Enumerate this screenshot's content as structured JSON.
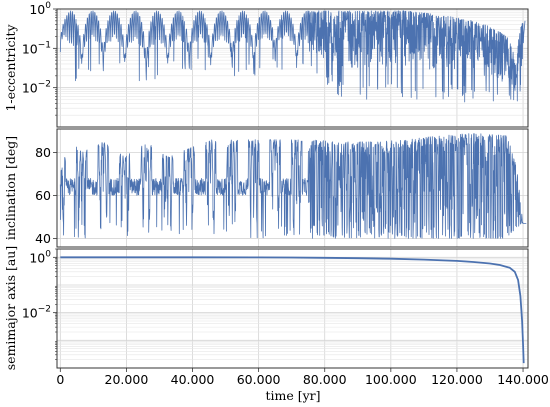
{
  "figure": {
    "xlabel": "time [yr]",
    "x_tick_labels": [
      "0",
      "20.000",
      "40.000",
      "60.000",
      "80.000",
      "100.000",
      "120.000",
      "140.000"
    ],
    "series_color": "#4c72b0",
    "grid_color": "#d4d4d4",
    "frame_color": "#333333"
  },
  "chart_data": [
    {
      "type": "line",
      "title": "",
      "xlabel": "",
      "ylabel": "1-eccentricity",
      "yscale": "log",
      "xlim": [
        -1000,
        141500
      ],
      "ylim": [
        0.001,
        1
      ],
      "y_tick_labels": [
        "10^0",
        "10^-1",
        "10^-2"
      ],
      "grid": true,
      "description_of_signal": "rapid Kozai-Lidov oscillations between ~0.9 and deep minima (~0.003-0.03); oscillation period ~6500 yr until ~75000 yr, then chaotic dense oscillations with minima reaching ~0.003-0.005 until ~140000 yr when it rises back to ~0.5",
      "series": [
        {
          "values_x": [
            0,
            3000,
            6500,
            13000,
            19500,
            26000,
            32500,
            39000,
            45500,
            52000,
            58500,
            65000,
            75000,
            85000,
            95000,
            105000,
            115000,
            125000,
            135000,
            138000,
            140000
          ],
          "values_y_max": [
            0.85,
            0.9,
            0.9,
            0.9,
            0.9,
            0.9,
            0.9,
            0.9,
            0.9,
            0.9,
            0.9,
            0.9,
            0.9,
            0.9,
            0.9,
            0.9,
            0.7,
            0.5,
            0.2,
            0.02,
            0.5
          ],
          "values_y_min": [
            0.08,
            0.003,
            0.02,
            0.02,
            0.02,
            0.01,
            0.02,
            0.02,
            0.02,
            0.02,
            0.02,
            0.03,
            0.02,
            0.005,
            0.005,
            0.005,
            0.005,
            0.004,
            0.003,
            0.003,
            0.01
          ]
        }
      ]
    },
    {
      "type": "line",
      "title": "",
      "xlabel": "",
      "ylabel": "inclination [deg]",
      "xlim": [
        -1000,
        141500
      ],
      "ylim": [
        36,
        91
      ],
      "y_tick_labels": [
        "40",
        "60",
        "80"
      ],
      "grid": true,
      "description_of_signal": "inclination oscillates between ~40 and ~88 deg in Kozai-Lidov cycles (period ~6500 yr), with a plateau band near 60-68 deg between cycles; after ~75000 yr cycles become chaotic, upper envelope near 85-90 deg, ending near 47 deg at ~140000 yr",
      "series": [
        {
          "values_x": [
            0,
            3000,
            6500,
            13000,
            19500,
            26000,
            32500,
            39000,
            45500,
            52000,
            58500,
            65000,
            75000,
            85000,
            95000,
            105000,
            115000,
            125000,
            135000,
            138000,
            140000
          ],
          "values_y_max": [
            70,
            88,
            80,
            85,
            78,
            85,
            78,
            82,
            86,
            86,
            86,
            86,
            86,
            85,
            85,
            86,
            88,
            89,
            88,
            75,
            47
          ],
          "values_y_min": [
            42,
            40,
            40,
            40,
            40,
            40,
            40,
            40,
            40,
            40,
            40,
            40,
            40,
            40,
            40,
            40,
            40,
            40,
            40,
            45,
            47
          ],
          "plateau": [
            60,
            68
          ]
        }
      ]
    },
    {
      "type": "line",
      "title": "",
      "xlabel": "time [yr]",
      "ylabel": "semimajor axis [au]",
      "yscale": "log",
      "xlim": [
        -1000,
        141500
      ],
      "ylim": [
        0.0001,
        2
      ],
      "y_tick_labels": [
        "10^0",
        "10^-2"
      ],
      "grid": true,
      "series": [
        {
          "x": [
            0,
            20000,
            40000,
            60000,
            70000,
            80000,
            90000,
            100000,
            110000,
            120000,
            125000,
            130000,
            133000,
            136000,
            137500,
            138500,
            139200,
            139700,
            140000,
            140200
          ],
          "y": [
            1.0,
            1.0,
            1.0,
            0.995,
            0.985,
            0.96,
            0.93,
            0.89,
            0.83,
            0.74,
            0.68,
            0.6,
            0.53,
            0.42,
            0.3,
            0.15,
            0.04,
            0.005,
            0.0008,
            0.00015
          ]
        }
      ]
    }
  ]
}
